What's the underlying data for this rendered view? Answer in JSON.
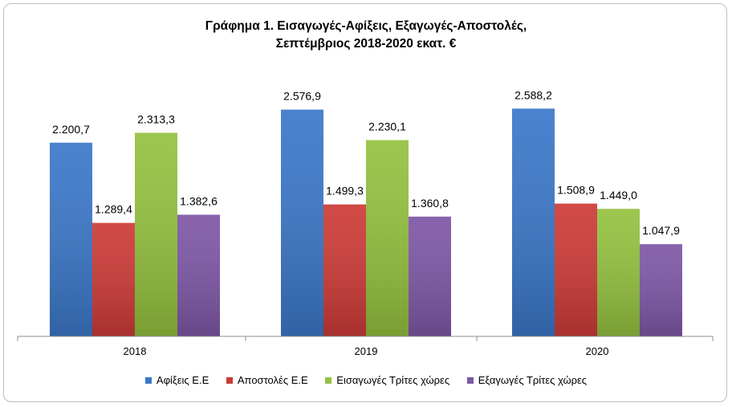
{
  "chart_data": {
    "type": "bar",
    "title_lines": [
      "Γράφημα 1. Εισαγωγές-Αφίξεις, Εξαγωγές-Αποστολές,",
      "Σεπτέμβριος 2018-2020 εκατ. €"
    ],
    "categories": [
      "2018",
      "2019",
      "2020"
    ],
    "series": [
      {
        "name": "Αφίξεις Ε.Ε",
        "color": "#3b77c9",
        "values": [
          2200.7,
          2576.9,
          2588.2
        ],
        "labels": [
          "2.200,7",
          "2.576,9",
          "2.588,2"
        ]
      },
      {
        "name": "Αποστολές  Ε.Ε",
        "color": "#cc3a36",
        "values": [
          1289.4,
          1499.3,
          1508.9
        ],
        "labels": [
          "1.289,4",
          "1.499,3",
          "1.508,9"
        ]
      },
      {
        "name": "Εισαγωγές Τρίτες χώρες",
        "color": "#93c13f",
        "values": [
          2313.3,
          2230.1,
          1449.0
        ],
        "labels": [
          "2.313,3",
          "2.230,1",
          "1.449,0"
        ]
      },
      {
        "name": "Εξαγωγές Τρίτες χώρες",
        "color": "#7e56a6",
        "values": [
          1382.6,
          1360.8,
          1047.9
        ],
        "labels": [
          "1.382,6",
          "1.360,8",
          "1.047,9"
        ]
      }
    ],
    "ylim": [
      0,
      3000
    ],
    "grid": false,
    "legend_position": "bottom"
  }
}
